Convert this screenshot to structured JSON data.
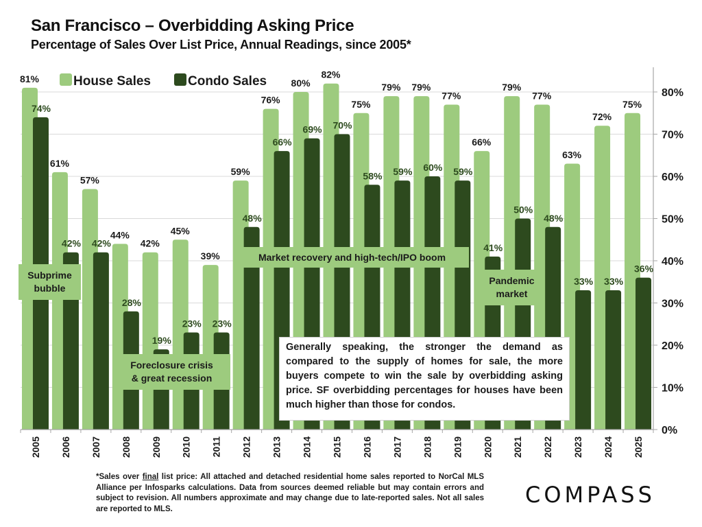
{
  "header": {
    "title": "San Francisco – Overbidding Asking Price",
    "subtitle": "Percentage of Sales Over List Price, Annual Readings, since 2005*"
  },
  "colors": {
    "house": "#9dcb7e",
    "condo": "#2d4a1e",
    "condo_label": "#2d4a1e",
    "house_label": "#1a1a1a",
    "gridline": "#d9d9d9",
    "axis": "#a6a6a6"
  },
  "chart_data": {
    "type": "bar",
    "title": "San Francisco – Overbidding Asking Price",
    "subtitle": "Percentage of Sales Over List Price, Annual Readings, since 2005*",
    "xlabel": "",
    "ylabel": "",
    "categories": [
      "2005",
      "2006",
      "2007",
      "2008",
      "2009",
      "2010",
      "2011",
      "2012",
      "2013",
      "2014",
      "2015",
      "2016",
      "2017",
      "2018",
      "2019",
      "2020",
      "2021",
      "2022",
      "2023",
      "2024",
      "2025"
    ],
    "series": [
      {
        "name": "House Sales",
        "values": [
          81,
          61,
          57,
          44,
          42,
          45,
          39,
          59,
          76,
          80,
          82,
          75,
          79,
          79,
          77,
          66,
          79,
          77,
          63,
          72,
          75
        ],
        "labels": [
          "81%",
          "61%",
          "57%",
          "44%",
          "42%",
          "45%",
          "39%",
          "59%",
          "76%",
          "80%",
          "82%",
          "75%",
          "79%",
          "79%",
          "77%",
          "66%",
          "79%",
          "77%",
          "63%",
          "72%",
          "75%"
        ]
      },
      {
        "name": "Condo Sales",
        "values": [
          74,
          42,
          42,
          28,
          19,
          23,
          23,
          48,
          66,
          69,
          70,
          58,
          59,
          60,
          59,
          41,
          50,
          48,
          33,
          33,
          36
        ],
        "labels": [
          "74%",
          "42%",
          "42%",
          "28%",
          "19%",
          "23%",
          "23%",
          "48%",
          "66%",
          "69%",
          "70%",
          "58%",
          "59%",
          "60%",
          "59%",
          "41%",
          "50%",
          "48%",
          "33%",
          "33%",
          "36%"
        ]
      }
    ],
    "ylim": [
      0,
      85
    ],
    "yticks": [
      0,
      10,
      20,
      30,
      40,
      50,
      60,
      70,
      80
    ],
    "ytick_labels": [
      "0%",
      "10%",
      "20%",
      "30%",
      "40%",
      "50%",
      "60%",
      "70%",
      "80%"
    ],
    "y_axis_side": "right",
    "grid": true,
    "legend": {
      "placement": "top-left",
      "entries": [
        "House Sales",
        "Condo Sales"
      ]
    },
    "annotations": [
      {
        "text": "Subprime bubble",
        "lines": [
          "Subprime",
          "bubble"
        ]
      },
      {
        "text": "Foreclosure crisis & great recession",
        "lines": [
          "Foreclosure crisis",
          "& great recession"
        ]
      },
      {
        "text": "Market recovery and high-tech/IPO boom",
        "lines": [
          "Market recovery and high-tech/IPO boom"
        ]
      },
      {
        "text": "Pandemic market",
        "lines": [
          "Pandemic",
          "market"
        ]
      }
    ]
  },
  "explanation": "Generally speaking, the stronger the demand as compared to the supply of homes for sale, the more buyers compete to win the sale by overbidding asking price. SF overbidding percentages for houses have been much higher than those for condos.",
  "footnote": {
    "prefix": "*Sales over ",
    "underlined": "final",
    "rest": " list price: All attached and detached residential home sales reported to NorCal MLS Alliance per Infosparks calculations. Data from sources deemed reliable but may contain errors and subject to revision. All numbers approximate and may change due to late-reported sales. Not all sales are reported to MLS."
  },
  "brand": {
    "logo_text": "COMPASS"
  }
}
